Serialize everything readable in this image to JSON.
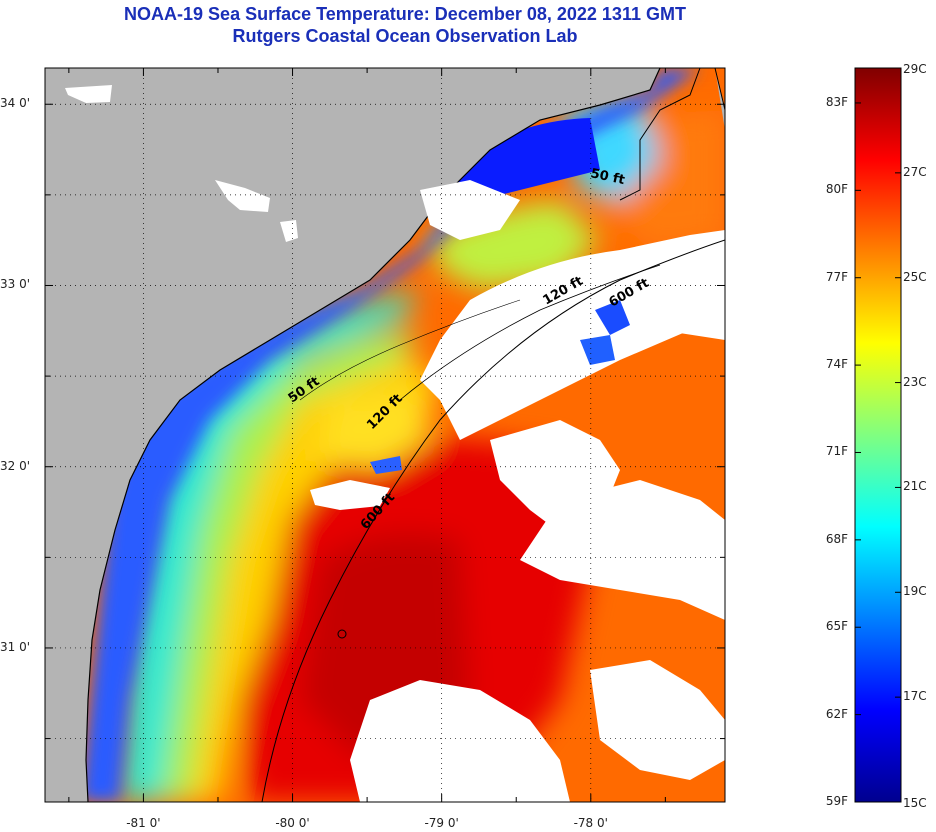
{
  "title": {
    "line1": "NOAA-19 Sea Surface Temperature:  December 08, 2022 1311 GMT",
    "line2": "Rutgers Coastal Ocean Observation Lab"
  },
  "map": {
    "lat_ticks": [
      {
        "value": 34,
        "label": "34 0'"
      },
      {
        "value": 33,
        "label": "33 0'"
      },
      {
        "value": 32,
        "label": "32 0'"
      },
      {
        "value": 31,
        "label": "31 0'"
      }
    ],
    "lon_ticks": [
      {
        "value": -81,
        "label": "-81 0'"
      },
      {
        "value": -80,
        "label": "-80 0'"
      },
      {
        "value": -79,
        "label": "-79 0'"
      },
      {
        "value": -78,
        "label": "-78 0'"
      }
    ],
    "lat_range": [
      30.15,
      34.2
    ],
    "lon_range": [
      -81.66,
      -77.1
    ],
    "grid": "dotted",
    "colors": {
      "land": "#b4b4b4",
      "cloud": "#ffffff",
      "coastline": "#000000"
    },
    "isobaths": [
      {
        "label": "50 ft",
        "id": "isobath-50ft-north"
      },
      {
        "label": "120 ft",
        "id": "isobath-120ft-north"
      },
      {
        "label": "600 ft",
        "id": "isobath-600ft-north"
      },
      {
        "label": "50 ft",
        "id": "isobath-50ft-south"
      },
      {
        "label": "120 ft",
        "id": "isobath-120ft-south"
      },
      {
        "label": "600 ft",
        "id": "isobath-600ft-south"
      }
    ]
  },
  "colorbar": {
    "min_c": 15,
    "max_c": 29,
    "celsius_labels": [
      "29C",
      "27C",
      "25C",
      "23C",
      "21C",
      "19C",
      "17C",
      "15C"
    ],
    "fahrenheit_labels": [
      "83F",
      "80F",
      "77F",
      "74F",
      "71F",
      "68F",
      "65F",
      "62F",
      "59F"
    ],
    "stops": [
      "#00008f",
      "#0000ff",
      "#0080ff",
      "#00ffff",
      "#80ff80",
      "#ffff00",
      "#ff8000",
      "#ff0000",
      "#800000"
    ]
  }
}
